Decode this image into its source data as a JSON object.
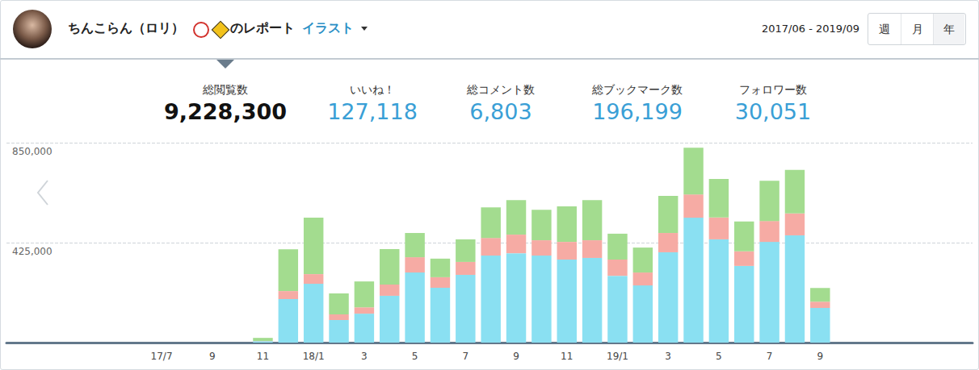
{
  "header": {
    "user": "ちんこらん（ロリ）",
    "suffix": "のレポート",
    "menu": "イラスト",
    "period": "2017/06 - 2019/09",
    "tabs": [
      "週",
      "月",
      "年"
    ],
    "selected_tab": "年"
  },
  "stats": [
    {
      "label": "総閲覧数",
      "value": "9,228,300"
    },
    {
      "label": "いいね！",
      "value": "127,118"
    },
    {
      "label": "総コメント数",
      "value": "6,803"
    },
    {
      "label": "総ブックマーク数",
      "value": "196,199"
    },
    {
      "label": "フォロワー数",
      "value": "30,051"
    }
  ],
  "chart_data": {
    "type": "bar",
    "stacked": true,
    "grid": true,
    "categories": [
      null,
      "17/7",
      null,
      "9",
      null,
      "11",
      null,
      "18/1",
      null,
      "3",
      null,
      "5",
      null,
      "7",
      null,
      "9",
      null,
      "11",
      null,
      "19/1",
      null,
      "3",
      null,
      "5",
      null,
      "7",
      null,
      "9"
    ],
    "series": [
      {
        "color": "#8ae0f2",
        "values": [
          0,
          0,
          0,
          0,
          0,
          6000,
          185000,
          250000,
          96000,
          123000,
          199000,
          298000,
          233000,
          288000,
          370000,
          380000,
          370000,
          353000,
          360000,
          284000,
          243000,
          384000,
          531000,
          439000,
          326000,
          428000,
          456000,
          147000
        ]
      },
      {
        "color": "#f6aba4",
        "values": [
          0,
          0,
          0,
          0,
          0,
          1000,
          34000,
          41000,
          24000,
          27000,
          48000,
          65000,
          45000,
          55000,
          75000,
          79000,
          65000,
          75000,
          75000,
          69000,
          55000,
          82000,
          99000,
          93000,
          62000,
          89000,
          93000,
          27000
        ]
      },
      {
        "color": "#a3dc8f",
        "values": [
          0,
          0,
          0,
          0,
          0,
          13000,
          178000,
          240000,
          89000,
          110000,
          151000,
          103000,
          79000,
          96000,
          130000,
          147000,
          130000,
          151000,
          171000,
          110000,
          106000,
          158000,
          199000,
          164000,
          127000,
          171000,
          185000,
          58000
        ]
      }
    ],
    "ylim": [
      0,
      850000
    ],
    "yticks": [
      {
        "value": 425000,
        "label": "425,000"
      },
      {
        "value": 850000,
        "label": "850,000"
      }
    ]
  }
}
